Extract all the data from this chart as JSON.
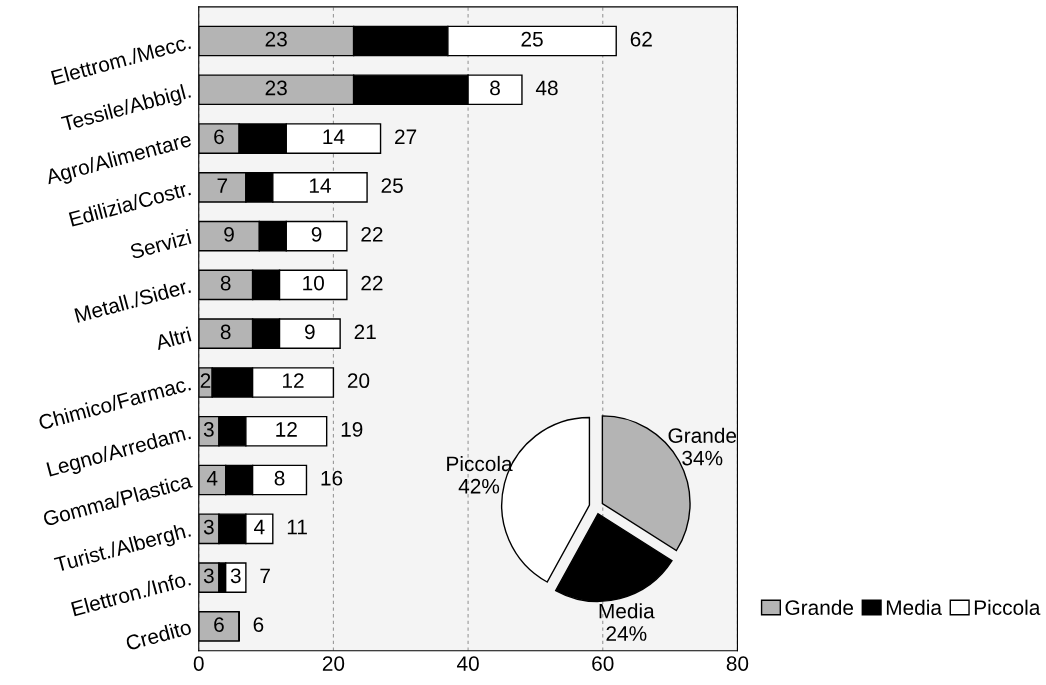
{
  "chart_data": [
    {
      "type": "bar",
      "orientation": "horizontal",
      "stacked": true,
      "categories": [
        "Elettrom./Mecc.",
        "Tessile/Abbigl.",
        "Agro/Alimentare",
        "Edilizia/Costr.",
        "Servizi",
        "Metall./Sider.",
        "Altri",
        "Chimico/Farmac.",
        "Legno/Arredam.",
        "Gomma/Plastica",
        "Turist./Albergh.",
        "Elettron./Info.",
        "Credito"
      ],
      "series": [
        {
          "name": "Grande",
          "color": "#b4b4b4",
          "values": [
            23,
            23,
            6,
            7,
            9,
            8,
            8,
            2,
            3,
            4,
            3,
            3,
            6
          ],
          "value_labels": [
            "23",
            "23",
            "6",
            "7",
            "9",
            "8",
            "8",
            "2",
            "3",
            "4",
            "3",
            "3",
            "6"
          ]
        },
        {
          "name": "Media",
          "color": "#000000",
          "values": [
            14,
            17,
            7,
            4,
            4,
            4,
            4,
            6,
            4,
            4,
            4,
            1,
            0
          ]
        },
        {
          "name": "Piccola",
          "color": "#ffffff",
          "values": [
            25,
            8,
            14,
            14,
            9,
            10,
            9,
            12,
            12,
            8,
            4,
            3,
            0
          ],
          "value_labels": [
            "25",
            "8",
            "14",
            "14",
            "9",
            "10",
            "9",
            "12",
            "12",
            "8",
            "4",
            "3",
            null
          ]
        }
      ],
      "totals": [
        "62",
        "48",
        "27",
        "25",
        "22",
        "22",
        "21",
        "20",
        "19",
        "16",
        "11",
        "7",
        "6"
      ],
      "xlim": [
        0,
        80
      ],
      "xticks": [
        0,
        20,
        40,
        60,
        80
      ],
      "grid": "x",
      "legend": "bottom right"
    },
    {
      "type": "pie",
      "categories": [
        "Grande",
        "Media",
        "Piccola"
      ],
      "values": [
        34,
        24,
        42
      ],
      "colors": [
        "#b4b4b4",
        "#000000",
        "#ffffff"
      ],
      "value_labels": [
        "34%",
        "24%",
        "42%"
      ]
    }
  ]
}
